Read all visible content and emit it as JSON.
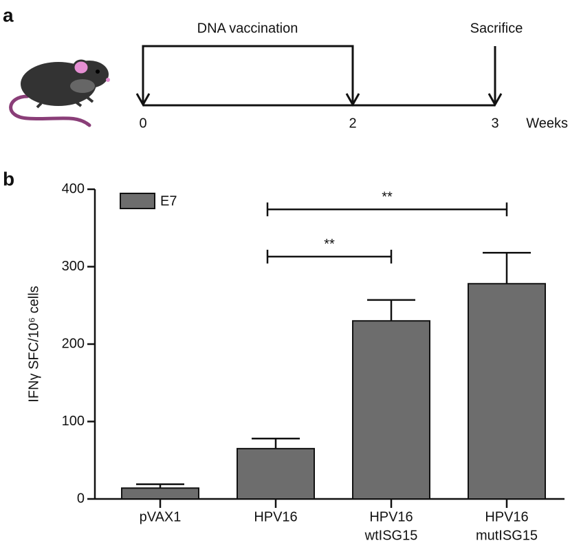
{
  "panel_a": {
    "label": "a",
    "phase": "DNA vaccination",
    "endpoint": "Sacrifice",
    "timepoints": [
      "0",
      "2",
      "3"
    ],
    "unit": "Weeks"
  },
  "chart_data": {
    "type": "bar",
    "panel_label": "b",
    "y_label": "IFNγ SFC/10⁶ cells",
    "categories": [
      [
        "pVAX1"
      ],
      [
        "HPV16"
      ],
      [
        "HPV16",
        "wtISG15"
      ],
      [
        "HPV16",
        "mutISG15"
      ]
    ],
    "series": [
      {
        "name": "E7",
        "color": "#6d6d6d",
        "values": [
          14,
          65,
          230,
          278
        ],
        "errors": [
          5,
          13,
          27,
          40
        ]
      }
    ],
    "ylim": [
      0,
      400
    ],
    "yticks": [
      0,
      100,
      200,
      300,
      400
    ],
    "legend": "upper left",
    "annotations": [
      {
        "text": "**",
        "between": [
          1,
          2
        ]
      },
      {
        "text": "**",
        "between": [
          1,
          3
        ]
      }
    ]
  }
}
